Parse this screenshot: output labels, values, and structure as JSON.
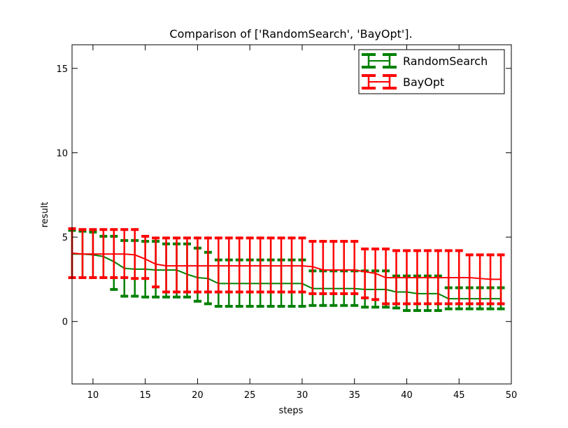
{
  "chart_data": {
    "type": "line",
    "title": "Comparison of ['RandomSearch', 'BayOpt'].",
    "xlabel": "steps",
    "ylabel": "result",
    "xlim": [
      8,
      50
    ],
    "ylim": [
      -3.7,
      16.4
    ],
    "xticks": [
      10,
      15,
      20,
      25,
      30,
      35,
      40,
      45,
      50
    ],
    "yticks": [
      0,
      5,
      10,
      15
    ],
    "grid": false,
    "legend_position": "top-right",
    "x": [
      8,
      9,
      10,
      11,
      12,
      13,
      14,
      15,
      16,
      17,
      18,
      19,
      20,
      21,
      22,
      23,
      24,
      25,
      26,
      27,
      28,
      29,
      30,
      31,
      32,
      33,
      34,
      35,
      36,
      37,
      38,
      39,
      40,
      41,
      42,
      43,
      44,
      45,
      46,
      47,
      48,
      49
    ],
    "series": [
      {
        "name": "RandomSearch",
        "color": "#008000",
        "mean": [
          4.0,
          4.0,
          3.95,
          3.85,
          3.55,
          3.15,
          3.1,
          3.1,
          3.05,
          3.05,
          3.05,
          2.8,
          2.6,
          2.55,
          2.25,
          2.25,
          2.25,
          2.25,
          2.25,
          2.25,
          2.25,
          2.25,
          2.25,
          1.95,
          1.95,
          1.95,
          1.95,
          1.95,
          1.9,
          1.9,
          1.9,
          1.75,
          1.75,
          1.65,
          1.65,
          1.65,
          1.35,
          1.35,
          1.35,
          1.35,
          1.35,
          1.35
        ],
        "upper": [
          5.4,
          5.35,
          5.3,
          5.05,
          5.05,
          4.8,
          4.8,
          4.75,
          4.75,
          4.6,
          4.6,
          4.6,
          4.35,
          4.1,
          3.65,
          3.65,
          3.65,
          3.65,
          3.65,
          3.65,
          3.65,
          3.65,
          3.65,
          3.0,
          3.0,
          3.0,
          3.0,
          3.0,
          3.0,
          3.0,
          3.0,
          2.7,
          2.7,
          2.7,
          2.7,
          2.7,
          2.0,
          2.0,
          2.0,
          2.0,
          2.0,
          2.0
        ],
        "lower": [
          2.6,
          2.6,
          2.6,
          2.6,
          1.9,
          1.5,
          1.5,
          1.45,
          1.45,
          1.45,
          1.45,
          1.45,
          1.2,
          1.05,
          0.9,
          0.9,
          0.9,
          0.9,
          0.9,
          0.9,
          0.9,
          0.9,
          0.9,
          0.95,
          0.95,
          0.95,
          0.95,
          0.95,
          0.85,
          0.85,
          0.85,
          0.8,
          0.65,
          0.65,
          0.65,
          0.65,
          0.75,
          0.75,
          0.75,
          0.75,
          0.75,
          0.75
        ]
      },
      {
        "name": "BayOpt",
        "color": "#ff0000",
        "mean": [
          4.05,
          4.0,
          4.0,
          4.0,
          4.0,
          4.0,
          3.95,
          3.7,
          3.4,
          3.3,
          3.3,
          3.3,
          3.3,
          3.3,
          3.3,
          3.3,
          3.3,
          3.3,
          3.3,
          3.3,
          3.3,
          3.3,
          3.3,
          3.25,
          3.05,
          3.05,
          3.05,
          3.05,
          2.95,
          2.85,
          2.6,
          2.6,
          2.6,
          2.6,
          2.6,
          2.6,
          2.6,
          2.6,
          2.6,
          2.55,
          2.5,
          2.5
        ],
        "upper": [
          5.5,
          5.45,
          5.45,
          5.45,
          5.45,
          5.45,
          5.45,
          5.05,
          4.95,
          4.95,
          4.95,
          4.95,
          4.95,
          4.95,
          4.95,
          4.95,
          4.95,
          4.95,
          4.95,
          4.95,
          4.95,
          4.95,
          4.95,
          4.75,
          4.75,
          4.75,
          4.75,
          4.75,
          4.3,
          4.3,
          4.3,
          4.2,
          4.2,
          4.2,
          4.2,
          4.2,
          4.2,
          4.2,
          3.95,
          3.95,
          3.95,
          3.95
        ],
        "lower": [
          2.6,
          2.6,
          2.6,
          2.6,
          2.6,
          2.6,
          2.55,
          2.55,
          2.05,
          1.75,
          1.75,
          1.75,
          1.75,
          1.75,
          1.75,
          1.75,
          1.75,
          1.75,
          1.75,
          1.75,
          1.75,
          1.75,
          1.75,
          1.65,
          1.65,
          1.65,
          1.65,
          1.65,
          1.4,
          1.3,
          1.05,
          1.05,
          1.05,
          1.05,
          1.05,
          1.05,
          1.05,
          1.05,
          1.05,
          1.05,
          1.05,
          1.05
        ]
      }
    ]
  }
}
